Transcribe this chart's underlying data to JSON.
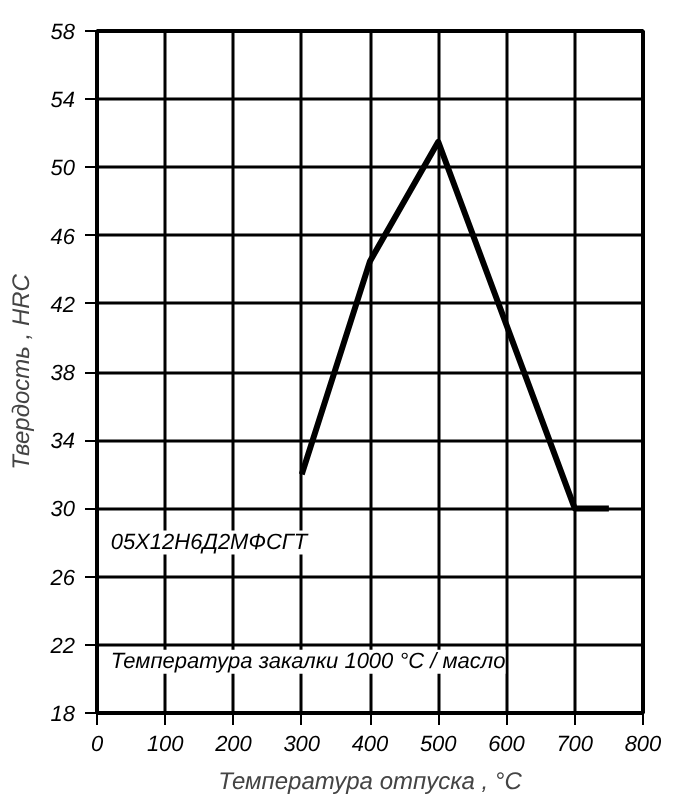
{
  "chart_data": {
    "type": "line",
    "xlabel": "Температура отпуска , °C",
    "ylabel": "Твердость , HRC",
    "x": [
      300,
      400,
      500,
      700,
      750
    ],
    "series": [
      {
        "color": "#000000",
        "values": [
          32,
          44.5,
          51.5,
          30,
          30
        ]
      }
    ],
    "xlim": [
      0,
      800
    ],
    "xticks": [
      0,
      100,
      200,
      300,
      400,
      500,
      600,
      700,
      800
    ],
    "ylim": [
      18,
      58
    ],
    "yticks": [
      18,
      22,
      26,
      30,
      34,
      38,
      42,
      46,
      50,
      54,
      58
    ],
    "grid": true,
    "marker": "none",
    "line_style": "solid",
    "annotations": [
      "05Х12Н6Д2МФСГТ",
      "Температура закалки 1000 °C / масло"
    ]
  }
}
